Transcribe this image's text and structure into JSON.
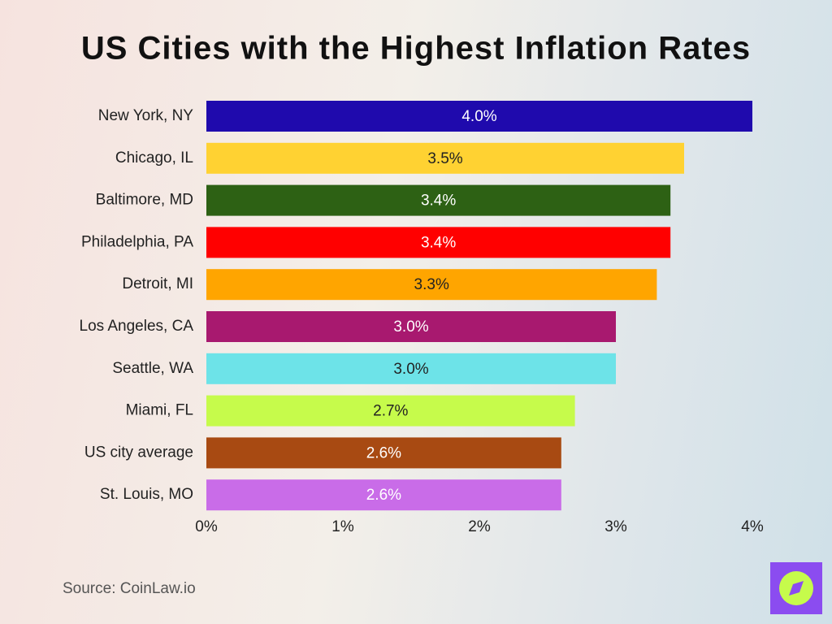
{
  "chart_data": {
    "type": "bar",
    "orientation": "horizontal",
    "title": "US Cities with the Highest Inflation Rates",
    "categories": [
      "New York, NY",
      "Chicago, IL",
      "Baltimore, MD",
      "Philadelphia, PA",
      "Detroit, MI",
      "Los Angeles, CA",
      "Seattle, WA",
      "Miami, FL",
      "US city average",
      "St. Louis, MO"
    ],
    "values": [
      4.0,
      3.5,
      3.4,
      3.4,
      3.3,
      3.0,
      3.0,
      2.7,
      2.6,
      2.6
    ],
    "value_labels": [
      "4.0%",
      "3.5%",
      "3.4%",
      "3.4%",
      "3.3%",
      "3.0%",
      "3.0%",
      "2.7%",
      "2.6%",
      "2.6%"
    ],
    "colors": [
      "#1f0aad",
      "#ffd232",
      "#2d6114",
      "#ff0000",
      "#ffa500",
      "#a8196f",
      "#6de3e8",
      "#c6fb4b",
      "#a84a12",
      "#c96ce8"
    ],
    "xlim": [
      0,
      4
    ],
    "xticks": [
      {
        "value": 0,
        "label": "0%"
      },
      {
        "value": 1,
        "label": "1%"
      },
      {
        "value": 2,
        "label": "2%"
      },
      {
        "value": 3,
        "label": "3%"
      },
      {
        "value": 4,
        "label": "4%"
      }
    ],
    "grid": false,
    "source": "Source: CoinLaw.io"
  }
}
